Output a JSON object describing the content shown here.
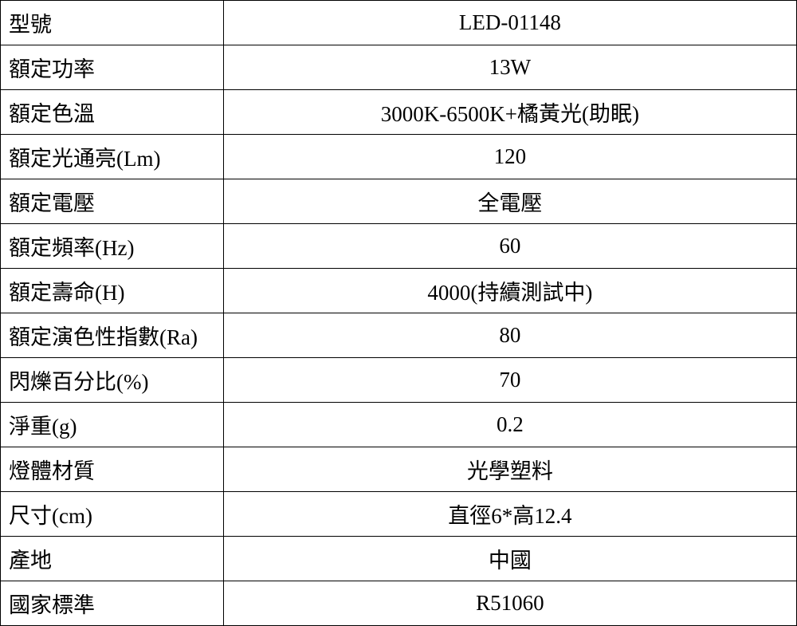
{
  "table": {
    "type": "table",
    "columns": [
      "label",
      "value"
    ],
    "col_widths": [
      "28%",
      "72%"
    ],
    "col_align": [
      "left",
      "center"
    ],
    "border_color": "#000000",
    "background_color": "#ffffff",
    "text_color": "#000000",
    "font_size": 27,
    "font_family": "PMingLiU, MingLiU, SimSun, serif",
    "rows": [
      {
        "label": "型號",
        "value": "LED-01148"
      },
      {
        "label": "額定功率",
        "value": "13W"
      },
      {
        "label": "額定色溫",
        "value": "3000K-6500K+橘黃光(助眠)"
      },
      {
        "label": "額定光通亮(Lm)",
        "value": "120"
      },
      {
        "label": "額定電壓",
        "value": "全電壓"
      },
      {
        "label": "額定頻率(Hz)",
        "value": "60"
      },
      {
        "label": "額定壽命(H)",
        "value": "4000(持續測試中)"
      },
      {
        "label": "額定演色性指數(Ra)",
        "value": "80"
      },
      {
        "label": "閃爍百分比(%)",
        "value": "70"
      },
      {
        "label": "淨重(g)",
        "value": "0.2"
      },
      {
        "label": "燈體材質",
        "value": "光學塑料"
      },
      {
        "label": "尺寸(cm)",
        "value": "直徑6*高12.4"
      },
      {
        "label": "產地",
        "value": "中國"
      },
      {
        "label": "國家標準",
        "value": "R51060"
      }
    ]
  }
}
